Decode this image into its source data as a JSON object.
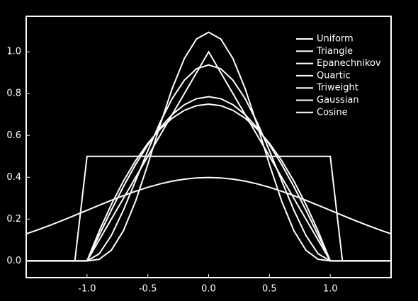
{
  "chart_data": {
    "type": "line",
    "x": [
      -1.5,
      -1.4,
      -1.3,
      -1.2,
      -1.1,
      -1.0,
      -0.9,
      -0.8,
      -0.7,
      -0.6,
      -0.5,
      -0.4,
      -0.3,
      -0.2,
      -0.1,
      0,
      0.1,
      0.2,
      0.3,
      0.4,
      0.5,
      0.6,
      0.7,
      0.8,
      0.9,
      1.0,
      1.1,
      1.2,
      1.3,
      1.4,
      1.5
    ],
    "series": [
      {
        "name": "Uniform",
        "color": "#ffffff",
        "values": [
          0,
          0,
          0,
          0,
          0,
          0.5,
          0.5,
          0.5,
          0.5,
          0.5,
          0.5,
          0.5,
          0.5,
          0.5,
          0.5,
          0.5,
          0.5,
          0.5,
          0.5,
          0.5,
          0.5,
          0.5,
          0.5,
          0.5,
          0.5,
          0.5,
          0,
          0,
          0,
          0,
          0
        ]
      },
      {
        "name": "Triangle",
        "color": "#ffffff",
        "values": [
          0,
          0,
          0,
          0,
          0,
          0,
          0.1,
          0.2,
          0.3,
          0.4,
          0.5,
          0.6,
          0.7,
          0.8,
          0.9,
          1,
          0.9,
          0.8,
          0.7,
          0.6,
          0.5,
          0.4,
          0.3,
          0.2,
          0.1,
          0,
          0,
          0,
          0,
          0,
          0
        ]
      },
      {
        "name": "Epanechnikov",
        "color": "#ffffff",
        "values": [
          0,
          0,
          0,
          0,
          0,
          0,
          0.1425,
          0.27,
          0.3825,
          0.48,
          0.5625,
          0.63,
          0.6825,
          0.72,
          0.7425,
          0.75,
          0.7425,
          0.72,
          0.6825,
          0.63,
          0.5625,
          0.48,
          0.3825,
          0.27,
          0.1425,
          0,
          0,
          0,
          0,
          0,
          0
        ]
      },
      {
        "name": "Quartic",
        "color": "#ffffff",
        "values": [
          0,
          0,
          0,
          0,
          0,
          0,
          0.0338,
          0.1215,
          0.2438,
          0.384,
          0.5273,
          0.6615,
          0.7763,
          0.864,
          0.9188,
          0.9375,
          0.9188,
          0.864,
          0.7763,
          0.6615,
          0.5273,
          0.384,
          0.2438,
          0.1215,
          0.0338,
          0,
          0,
          0,
          0,
          0,
          0
        ]
      },
      {
        "name": "Triweight",
        "color": "#ffffff",
        "values": [
          0,
          0,
          0,
          0,
          0,
          0,
          0.0075,
          0.051,
          0.1451,
          0.2867,
          0.4614,
          0.6483,
          0.8242,
          0.9677,
          1.0613,
          1.0938,
          1.0613,
          0.9677,
          0.8242,
          0.6483,
          0.4614,
          0.2867,
          0.1451,
          0.051,
          0.0075,
          0,
          0,
          0,
          0,
          0,
          0
        ]
      },
      {
        "name": "Gaussian",
        "color": "#ffffff",
        "values": [
          0.1295,
          0.1497,
          0.1714,
          0.1942,
          0.2179,
          0.242,
          0.2661,
          0.2897,
          0.3123,
          0.3332,
          0.3521,
          0.3683,
          0.3814,
          0.391,
          0.397,
          0.3989,
          0.397,
          0.391,
          0.3814,
          0.3683,
          0.3521,
          0.3332,
          0.3123,
          0.2897,
          0.2661,
          0.242,
          0.2179,
          0.1942,
          0.1714,
          0.1497,
          0.1295
        ]
      },
      {
        "name": "Cosine",
        "color": "#ffffff",
        "values": [
          0,
          0,
          0,
          0,
          0,
          0,
          0.1229,
          0.2427,
          0.3566,
          0.4617,
          0.5554,
          0.6354,
          0.6998,
          0.747,
          0.7757,
          0.7854,
          0.7757,
          0.747,
          0.6998,
          0.6354,
          0.5554,
          0.4617,
          0.3566,
          0.2427,
          0.1229,
          0,
          0,
          0,
          0,
          0,
          0
        ]
      }
    ],
    "xlim": [
      -1.5,
      1.5
    ],
    "ylim": [
      -0.08,
      1.17
    ],
    "xticks": [
      {
        "value": -1,
        "label": "-1.0"
      },
      {
        "value": -0.5,
        "label": "-0.5"
      },
      {
        "value": 0,
        "label": "0.0"
      },
      {
        "value": 0.5,
        "label": "0.5"
      },
      {
        "value": 1,
        "label": "1.0"
      }
    ],
    "yticks": [
      {
        "value": 0,
        "label": "0.0"
      },
      {
        "value": 0.2,
        "label": "0.2"
      },
      {
        "value": 0.4,
        "label": "0.4"
      },
      {
        "value": 0.6,
        "label": "0.6"
      },
      {
        "value": 0.8,
        "label": "0.8"
      },
      {
        "value": 1,
        "label": "1.0"
      }
    ],
    "legend": "upper right"
  }
}
